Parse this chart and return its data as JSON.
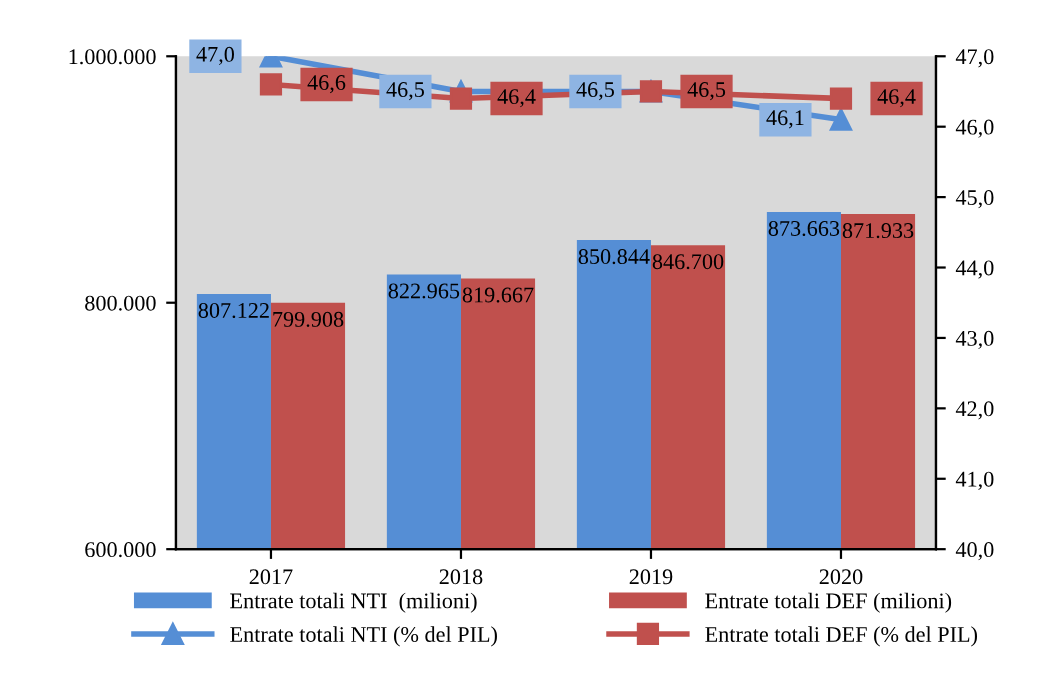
{
  "chart_data": {
    "type": "bar",
    "categories": [
      "2017",
      "2018",
      "2019",
      "2020"
    ],
    "ylim": [
      600000,
      1000000
    ],
    "yticks": [
      {
        "value": 600000,
        "label": "600.000"
      },
      {
        "value": 800000,
        "label": "800.000"
      },
      {
        "value": 1000000,
        "label": "1.000.000"
      }
    ],
    "y2lim": [
      40,
      47
    ],
    "y2ticks": [
      {
        "value": 40,
        "label": "40,0"
      },
      {
        "value": 41,
        "label": "41,0"
      },
      {
        "value": 42,
        "label": "42,0"
      },
      {
        "value": 43,
        "label": "43,0"
      },
      {
        "value": 44,
        "label": "44,0"
      },
      {
        "value": 45,
        "label": "45,0"
      },
      {
        "value": 46,
        "label": "46,0"
      },
      {
        "value": 47,
        "label": "47,0"
      }
    ],
    "grid": false,
    "legend": "bottom",
    "series": [
      {
        "name": "Entrate totali NTI  (milioni)",
        "color": "#558ed5",
        "values": [
          807122,
          822965,
          850844,
          873663
        ],
        "value_labels": [
          "807.122",
          "822.965",
          "850.844",
          "873.663"
        ]
      },
      {
        "name": "Entrate totali DEF (milioni)",
        "color": "#c0504d",
        "values": [
          799908,
          819667,
          846700,
          871933
        ],
        "value_labels": [
          "799.908",
          "819.667",
          "846.700",
          "871.933"
        ]
      },
      {
        "name": "Entrate totali NTI (% del PIL)",
        "type": "line",
        "axis": "y2",
        "marker": "triangle",
        "color": "#558ed5",
        "values": [
          47.0,
          46.5,
          46.5,
          46.1
        ],
        "value_labels": [
          "47,0",
          "46,5",
          "46,5",
          "46,1"
        ]
      },
      {
        "name": "Entrate totali DEF (% del PIL)",
        "type": "line",
        "axis": "y2",
        "marker": "square",
        "color": "#c0504d",
        "values": [
          46.6,
          46.4,
          46.5,
          46.4
        ],
        "value_labels": [
          "46,6",
          "46,4",
          "46,5",
          "46,4"
        ]
      }
    ]
  }
}
